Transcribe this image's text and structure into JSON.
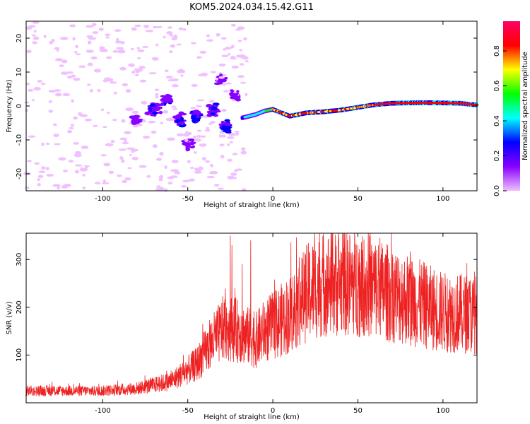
{
  "title": "KOM5.2024.034.15.42.G11",
  "colors": {
    "snr_line": "#ee2222",
    "colormap": [
      "#f0c0ff",
      "#8800ff",
      "#0000ff",
      "#00ffff",
      "#00ff00",
      "#ffff00",
      "#ff0000",
      "#ff0066"
    ]
  },
  "chart_data": [
    {
      "type": "heatmap",
      "xlabel": "Height of straight line (km)",
      "ylabel": "Frequency (Hz)",
      "xlim": [
        -145,
        120
      ],
      "ylim": [
        -25,
        25
      ],
      "xticks": [
        -100,
        -50,
        0,
        50,
        100
      ],
      "yticks": [
        -20,
        -10,
        0,
        10,
        20
      ],
      "colorbar": {
        "label": "Normalized spectral amplitude",
        "range": [
          0.0,
          0.97
        ],
        "ticks": [
          0.0,
          0.2,
          0.4,
          0.6,
          0.8
        ]
      },
      "ridge": [
        {
          "x": -18,
          "y": -3.5
        },
        {
          "x": -10,
          "y": -2.5
        },
        {
          "x": -5,
          "y": -1.5
        },
        {
          "x": 0,
          "y": -1
        },
        {
          "x": 5,
          "y": -2
        },
        {
          "x": 10,
          "y": -3
        },
        {
          "x": 20,
          "y": -2
        },
        {
          "x": 30,
          "y": -1.7
        },
        {
          "x": 40,
          "y": -1.2
        },
        {
          "x": 50,
          "y": -0.4
        },
        {
          "x": 60,
          "y": 0.4
        },
        {
          "x": 70,
          "y": 0.8
        },
        {
          "x": 90,
          "y": 1
        },
        {
          "x": 110,
          "y": 0.8
        },
        {
          "x": 120,
          "y": 0.3
        }
      ],
      "clusters": [
        {
          "x": -28,
          "y": -6,
          "amp": 0.35
        },
        {
          "x": -35,
          "y": -1.5,
          "amp": 0.3
        },
        {
          "x": -45,
          "y": -3,
          "amp": 0.3
        },
        {
          "x": -55,
          "y": -4,
          "amp": 0.28
        },
        {
          "x": -62,
          "y": 2,
          "amp": 0.25
        },
        {
          "x": -70,
          "y": -1,
          "amp": 0.25
        },
        {
          "x": -80,
          "y": -4,
          "amp": 0.2
        },
        {
          "x": -50,
          "y": -11,
          "amp": 0.2
        },
        {
          "x": -22,
          "y": 3,
          "amp": 0.2
        },
        {
          "x": -30,
          "y": 8,
          "amp": 0.15
        }
      ]
    },
    {
      "type": "line",
      "xlabel": "Height of straight line (km)",
      "ylabel": "SNR (v/v)",
      "xlim": [
        -145,
        120
      ],
      "ylim": [
        0,
        355
      ],
      "xticks": [
        -100,
        -50,
        0,
        50,
        100
      ],
      "yticks": [
        100,
        200,
        300
      ],
      "series": [
        {
          "x": [
            -145,
            -120,
            -100,
            -80,
            -60,
            -45,
            -35,
            -28,
            -20,
            -10,
            -5,
            0,
            10,
            20,
            30,
            50,
            60,
            80,
            100,
            120
          ],
          "y": [
            25,
            25,
            25,
            30,
            45,
            80,
            130,
            160,
            150,
            130,
            150,
            160,
            185,
            230,
            250,
            250,
            240,
            215,
            190,
            185
          ],
          "spikes": [
            {
              "x": -25,
              "y": 350
            },
            {
              "x": -24,
              "y": 330
            },
            {
              "x": -13,
              "y": 340
            },
            {
              "x": -18,
              "y": 290
            },
            {
              "x": 50,
              "y": 330
            },
            {
              "x": 63,
              "y": 345
            },
            {
              "x": 35,
              "y": 320
            }
          ]
        }
      ]
    }
  ]
}
